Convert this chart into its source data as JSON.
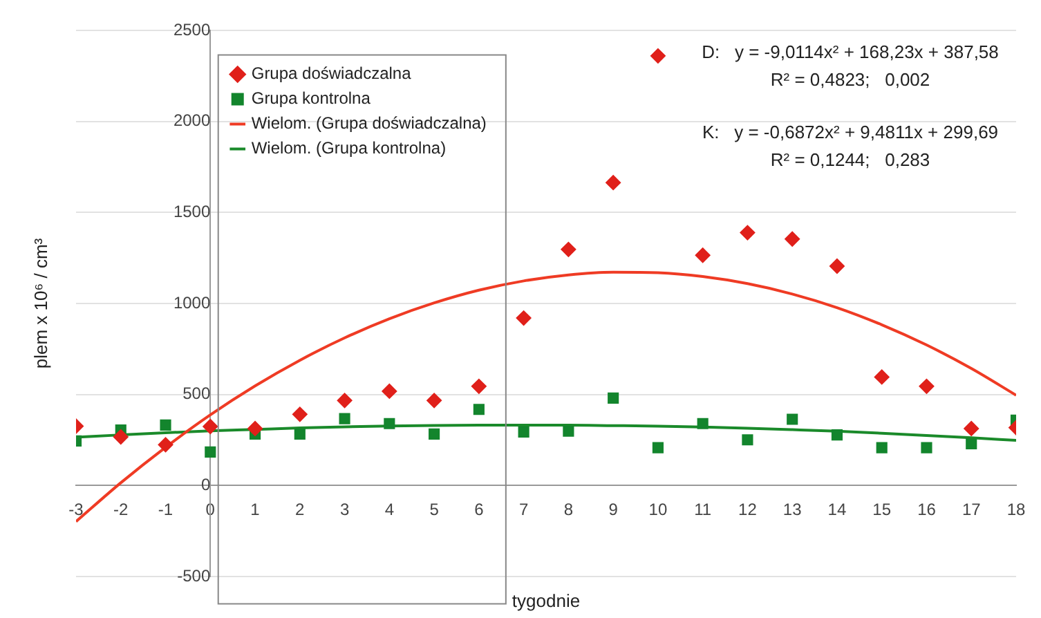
{
  "chart_data": {
    "type": "scatter",
    "xlabel": "tygodnie",
    "ylabel": "plem x 10⁶ / cm³",
    "xlim": [
      -3,
      18
    ],
    "xticks": [
      -3,
      -2,
      -1,
      0,
      1,
      2,
      3,
      4,
      5,
      6,
      7,
      8,
      9,
      10,
      11,
      12,
      13,
      14,
      15,
      16,
      17,
      18
    ],
    "ylim": [
      -500,
      2500
    ],
    "yticks": [
      -500,
      0,
      500,
      1000,
      1500,
      2000,
      2500
    ],
    "grid": "y",
    "legend": "top left",
    "annotations": [
      "D:   y = -9,0114x² + 168,23x + 387,58",
      "R² = 0,4823;   0,002",
      "K:   y = -0,6872x² + 9,4811x + 299,69",
      "R² = 0,1244;   0,283"
    ],
    "series": [
      {
        "name": "Grupa doświadczalna",
        "type": "scatter",
        "marker": "diamond",
        "color": "#e0201a",
        "x": [
          -3,
          -2,
          -1,
          0,
          1,
          2,
          3,
          4,
          5,
          6,
          7,
          8,
          9,
          10,
          11,
          12,
          13,
          14,
          15,
          16,
          17,
          18
        ],
        "values": [
          326,
          267,
          224,
          324,
          313,
          391,
          467,
          518,
          467,
          545,
          920,
          1297,
          1664,
          2360,
          1265,
          1389,
          1354,
          1205,
          596,
          545,
          313,
          318
        ]
      },
      {
        "name": "Grupa kontrolna",
        "type": "scatter",
        "marker": "square",
        "color": "#13852d",
        "x": [
          -3,
          -2,
          -1,
          0,
          1,
          2,
          3,
          4,
          5,
          6,
          7,
          8,
          9,
          10,
          11,
          12,
          13,
          14,
          15,
          16,
          17,
          18
        ],
        "values": [
          245,
          305,
          332,
          184,
          283,
          283,
          367,
          340,
          283,
          418,
          294,
          299,
          480,
          208,
          340,
          251,
          364,
          278,
          208,
          208,
          229,
          359
        ]
      },
      {
        "name": "Wielom. (Grupa doświadczalna)",
        "type": "line",
        "marker": "none",
        "color": "#ef3b24",
        "x": [
          -3,
          -2,
          -1,
          0,
          1,
          2,
          3,
          4,
          5,
          6,
          7,
          8,
          9,
          10,
          11,
          12,
          13,
          14,
          15,
          16,
          17,
          18
        ],
        "values": [
          -198,
          15,
          210,
          388,
          547,
          688,
          811,
          916,
          1003,
          1073,
          1124,
          1157,
          1172,
          1169,
          1148,
          1109,
          1052,
          977,
          883,
          772,
          643,
          496
        ]
      },
      {
        "name": "Wielom. (Grupa kontrolna)",
        "type": "line",
        "marker": "none",
        "color": "#1a8a2a",
        "x": [
          -3,
          -2,
          -1,
          0,
          1,
          2,
          3,
          4,
          5,
          6,
          7,
          8,
          9,
          10,
          11,
          12,
          13,
          14,
          15,
          16,
          17,
          18
        ],
        "values": [
          265,
          278,
          290,
          300,
          308,
          316,
          322,
          327,
          330,
          332,
          332,
          332,
          329,
          326,
          321,
          315,
          307,
          298,
          287,
          275,
          262,
          248
        ]
      }
    ]
  }
}
